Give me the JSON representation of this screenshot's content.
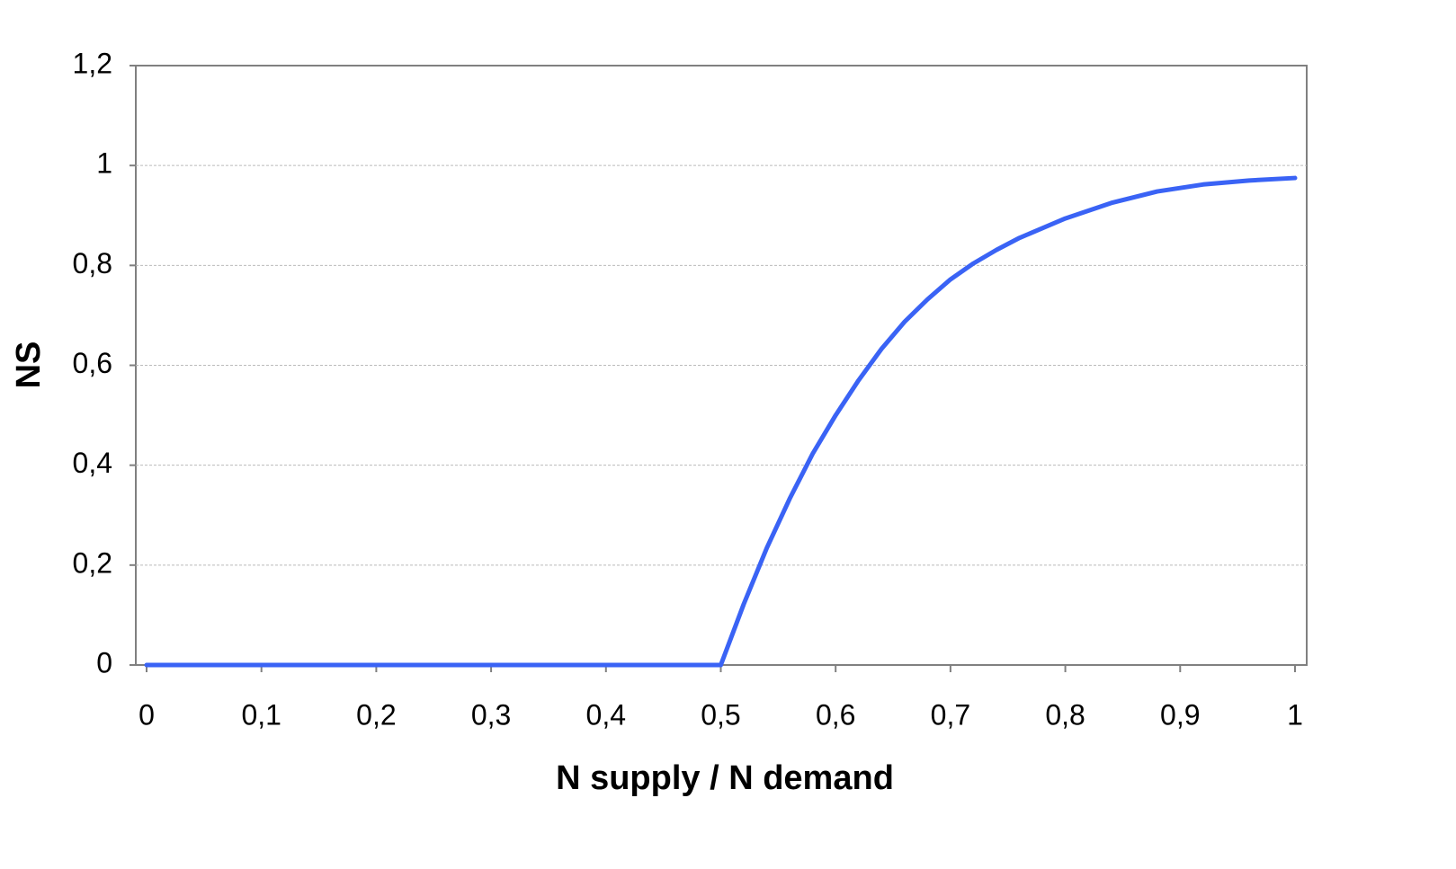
{
  "chart_data": {
    "type": "line",
    "x_label": "N supply / N demand",
    "y_label": "NS",
    "x": [
      0,
      0.5,
      0.52,
      0.54,
      0.56,
      0.58,
      0.6,
      0.62,
      0.64,
      0.66,
      0.68,
      0.7,
      0.72,
      0.74,
      0.76,
      0.8,
      0.84,
      0.88,
      0.92,
      0.96,
      1.0
    ],
    "series": [
      {
        "name": "NS",
        "color": "#3a63f5",
        "values": [
          0,
          0,
          0.122,
          0.234,
          0.333,
          0.423,
          0.5,
          0.57,
          0.633,
          0.687,
          0.732,
          0.772,
          0.804,
          0.831,
          0.855,
          0.894,
          0.925,
          0.948,
          0.962,
          0.97,
          0.975
        ]
      }
    ],
    "xlim": [
      -0.0094,
      1.0102
    ],
    "xticks": [
      0,
      {
        "value": 0.1,
        "label": "0,1"
      },
      {
        "value": 0.2,
        "label": "0,2"
      },
      {
        "value": 0.3,
        "label": "0,3"
      },
      {
        "value": 0.4,
        "label": "0,4"
      },
      {
        "value": 0.5,
        "label": "0,5"
      },
      {
        "value": 0.6,
        "label": "0,6"
      },
      {
        "value": 0.7,
        "label": "0,7"
      },
      {
        "value": 0.8,
        "label": "0,8"
      },
      {
        "value": 0.9,
        "label": "0,9"
      },
      1
    ],
    "ylim": [
      0,
      1.2
    ],
    "yticks": [
      0,
      {
        "value": 0.2,
        "label": "0,2"
      },
      {
        "value": 0.4,
        "label": "0,4"
      },
      {
        "value": 0.6,
        "label": "0,6"
      },
      {
        "value": 0.8,
        "label": "0,8"
      },
      1,
      {
        "value": 1.2,
        "label": "1,2"
      }
    ],
    "grid": true
  }
}
